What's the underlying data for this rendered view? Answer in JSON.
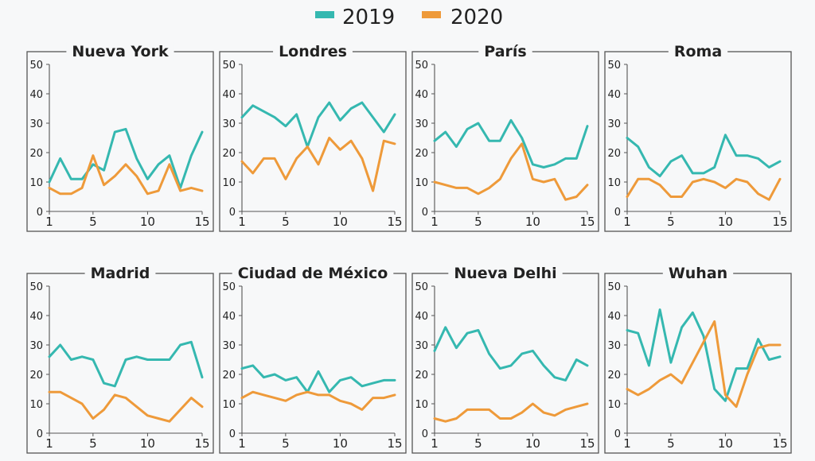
{
  "legend": [
    {
      "label": "2019",
      "color": "#35b8b0"
    },
    {
      "label": "2020",
      "color": "#ee9a3a"
    }
  ],
  "chart_data": [
    {
      "type": "line",
      "title": "Nueva York",
      "x": [
        1,
        2,
        3,
        4,
        5,
        6,
        7,
        8,
        9,
        10,
        11,
        12,
        13,
        14,
        15
      ],
      "series": [
        {
          "name": "2019",
          "values": [
            10,
            18,
            11,
            11,
            16,
            14,
            27,
            28,
            18,
            11,
            16,
            19,
            8,
            19,
            27
          ]
        },
        {
          "name": "2020",
          "values": [
            8,
            6,
            6,
            8,
            19,
            9,
            12,
            16,
            12,
            6,
            7,
            16,
            7,
            8,
            7
          ]
        }
      ],
      "ylim": [
        0,
        50
      ],
      "yticks": [
        0,
        10,
        20,
        30,
        40,
        50
      ],
      "xticks": [
        1,
        5,
        10,
        15
      ]
    },
    {
      "type": "line",
      "title": "Londres",
      "x": [
        1,
        2,
        3,
        4,
        5,
        6,
        7,
        8,
        9,
        10,
        11,
        12,
        13,
        14,
        15
      ],
      "series": [
        {
          "name": "2019",
          "values": [
            32,
            36,
            34,
            32,
            29,
            33,
            22,
            32,
            37,
            31,
            35,
            37,
            32,
            27,
            33
          ]
        },
        {
          "name": "2020",
          "values": [
            17,
            13,
            18,
            18,
            11,
            18,
            22,
            16,
            25,
            21,
            24,
            18,
            7,
            24,
            23
          ]
        }
      ],
      "ylim": [
        0,
        50
      ],
      "yticks": [
        0,
        10,
        20,
        30,
        40,
        50
      ],
      "xticks": [
        1,
        5,
        10,
        15
      ]
    },
    {
      "type": "line",
      "title": "París",
      "x": [
        1,
        2,
        3,
        4,
        5,
        6,
        7,
        8,
        9,
        10,
        11,
        12,
        13,
        14,
        15
      ],
      "series": [
        {
          "name": "2019",
          "values": [
            24,
            27,
            22,
            28,
            30,
            24,
            24,
            31,
            25,
            16,
            15,
            16,
            18,
            18,
            29
          ]
        },
        {
          "name": "2020",
          "values": [
            10,
            9,
            8,
            8,
            6,
            8,
            11,
            18,
            23,
            11,
            10,
            11,
            4,
            5,
            9
          ]
        }
      ],
      "ylim": [
        0,
        50
      ],
      "yticks": [
        0,
        10,
        20,
        30,
        40,
        50
      ],
      "xticks": [
        1,
        5,
        10,
        15
      ]
    },
    {
      "type": "line",
      "title": "Roma",
      "x": [
        1,
        2,
        3,
        4,
        5,
        6,
        7,
        8,
        9,
        10,
        11,
        12,
        13,
        14,
        15
      ],
      "series": [
        {
          "name": "2019",
          "values": [
            25,
            22,
            15,
            12,
            17,
            19,
            13,
            13,
            15,
            26,
            19,
            19,
            18,
            15,
            17
          ]
        },
        {
          "name": "2020",
          "values": [
            5,
            11,
            11,
            9,
            5,
            5,
            10,
            11,
            10,
            8,
            11,
            10,
            6,
            4,
            11
          ]
        }
      ],
      "ylim": [
        0,
        50
      ],
      "yticks": [
        0,
        10,
        20,
        30,
        40,
        50
      ],
      "xticks": [
        1,
        5,
        10,
        15
      ]
    },
    {
      "type": "line",
      "title": "Madrid",
      "x": [
        1,
        2,
        3,
        4,
        5,
        6,
        7,
        8,
        9,
        10,
        11,
        12,
        13,
        14,
        15
      ],
      "series": [
        {
          "name": "2019",
          "values": [
            26,
            30,
            25,
            26,
            25,
            17,
            16,
            25,
            26,
            25,
            25,
            25,
            30,
            31,
            19
          ]
        },
        {
          "name": "2020",
          "values": [
            14,
            14,
            12,
            10,
            5,
            8,
            13,
            12,
            9,
            6,
            5,
            4,
            8,
            12,
            9
          ]
        }
      ],
      "ylim": [
        0,
        50
      ],
      "yticks": [
        0,
        10,
        20,
        30,
        40,
        50
      ],
      "xticks": [
        1,
        5,
        10,
        15
      ]
    },
    {
      "type": "line",
      "title": "Ciudad de México",
      "x": [
        1,
        2,
        3,
        4,
        5,
        6,
        7,
        8,
        9,
        10,
        11,
        12,
        13,
        14,
        15
      ],
      "series": [
        {
          "name": "2019",
          "values": [
            22,
            23,
            19,
            20,
            18,
            19,
            14,
            21,
            14,
            18,
            19,
            16,
            17,
            18,
            18
          ]
        },
        {
          "name": "2020",
          "values": [
            12,
            14,
            13,
            12,
            11,
            13,
            14,
            13,
            13,
            11,
            10,
            8,
            12,
            12,
            13
          ]
        }
      ],
      "ylim": [
        0,
        50
      ],
      "yticks": [
        0,
        10,
        20,
        30,
        40,
        50
      ],
      "xticks": [
        1,
        5,
        10,
        15
      ]
    },
    {
      "type": "line",
      "title": "Nueva Delhi",
      "x": [
        1,
        2,
        3,
        4,
        5,
        6,
        7,
        8,
        9,
        10,
        11,
        12,
        13,
        14,
        15
      ],
      "series": [
        {
          "name": "2019",
          "values": [
            28,
            36,
            29,
            34,
            35,
            27,
            22,
            23,
            27,
            28,
            23,
            19,
            18,
            25,
            23
          ]
        },
        {
          "name": "2020",
          "values": [
            5,
            4,
            5,
            8,
            8,
            8,
            5,
            5,
            7,
            10,
            7,
            6,
            8,
            9,
            10
          ]
        }
      ],
      "ylim": [
        0,
        50
      ],
      "yticks": [
        0,
        10,
        20,
        30,
        40,
        50
      ],
      "xticks": [
        1,
        5,
        10,
        15
      ]
    },
    {
      "type": "line",
      "title": "Wuhan",
      "x": [
        1,
        2,
        3,
        4,
        5,
        6,
        7,
        8,
        9,
        10,
        11,
        12,
        13,
        14,
        15
      ],
      "series": [
        {
          "name": "2019",
          "values": [
            35,
            34,
            23,
            42,
            24,
            36,
            41,
            33,
            15,
            11,
            22,
            22,
            32,
            25,
            26
          ]
        },
        {
          "name": "2020",
          "values": [
            15,
            13,
            15,
            18,
            20,
            17,
            24,
            31,
            38,
            13,
            9,
            20,
            29,
            30,
            30
          ]
        }
      ],
      "ylim": [
        0,
        50
      ],
      "yticks": [
        0,
        10,
        20,
        30,
        40,
        50
      ],
      "xticks": [
        1,
        5,
        10,
        15
      ]
    }
  ]
}
